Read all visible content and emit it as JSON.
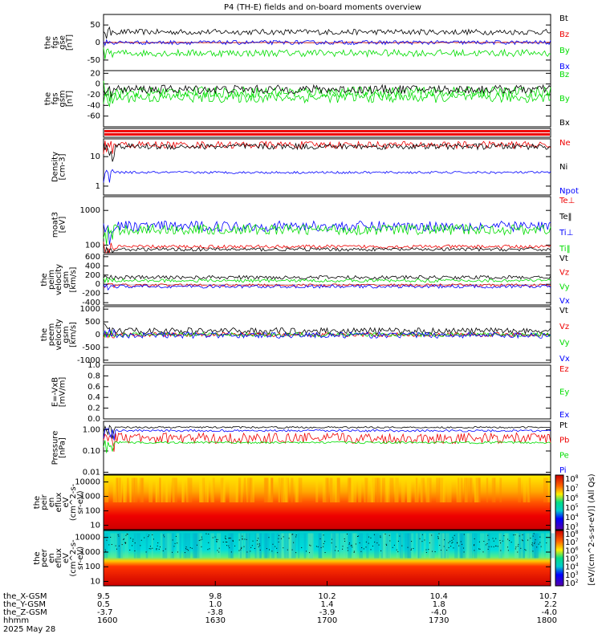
{
  "chart_data": {
    "type": "line",
    "title": "P4 (TH-E) fields and on-board moments overview",
    "date_label": "2025 May 28",
    "time_range": [
      "16:00",
      "18:00"
    ],
    "time_ticks": [
      {
        "t": "1600",
        "x_gsm": "9.5",
        "y_gsm": "0.5",
        "z_gsm": "-3.7"
      },
      {
        "t": "1630",
        "x_gsm": "9.8",
        "y_gsm": "1.0",
        "z_gsm": "-3.8"
      },
      {
        "t": "1700",
        "x_gsm": "10.2",
        "y_gsm": "1.4",
        "z_gsm": "-3.9"
      },
      {
        "t": "1730",
        "x_gsm": "10.4",
        "y_gsm": "1.8",
        "z_gsm": "-4.0"
      },
      {
        "t": "1800",
        "x_gsm": "10.7",
        "y_gsm": "2.2",
        "z_gsm": "-4.0"
      }
    ],
    "time_axis_labels": [
      "the_X-GSM",
      "the_Y-GSM",
      "the_Z-GSM",
      "hhmm"
    ],
    "colorbar_label": "[eV/(cm^2-s-sr-eV)] (All Qs)",
    "colors": {
      "black": "#000000",
      "red": "#ee0000",
      "green": "#00dd00",
      "blue": "#0000ff"
    },
    "panels": [
      {
        "id": "fgs-gse",
        "ylabel": [
          "the",
          "fgs",
          "gse",
          "[nT]"
        ],
        "yticks": [
          "50",
          "0",
          "-50"
        ],
        "ytick_vals": [
          50,
          0,
          -50
        ],
        "ylim": [
          -80,
          80
        ],
        "scale": "linear",
        "series": [
          {
            "name": "Bt",
            "color": "black",
            "level": 30,
            "noise": 8
          },
          {
            "name": "Bz",
            "color": "red",
            "level": 0,
            "noise": 1
          },
          {
            "name": "By",
            "color": "green",
            "level": -30,
            "noise": 10
          },
          {
            "name": "Bx",
            "color": "blue",
            "level": 0,
            "noise": 6
          }
        ]
      },
      {
        "id": "fgs-gsm",
        "ylabel": [
          "the",
          "fgs",
          "gsm",
          "[nT]"
        ],
        "yticks": [
          "20",
          "0",
          "-20",
          "-40",
          "-60"
        ],
        "ytick_vals": [
          20,
          0,
          -20,
          -40,
          -60
        ],
        "ylim": [
          -80,
          25
        ],
        "scale": "linear",
        "series": [
          {
            "name": "Bz",
            "color": "green",
            "level": -15,
            "noise": 10
          },
          {
            "name": "By",
            "color": "green",
            "level": -25,
            "noise": 10
          },
          {
            "name": "Bx",
            "color": "black",
            "level": -10,
            "noise": 8
          }
        ]
      },
      {
        "id": "quality-bar",
        "kind": "bar"
      },
      {
        "id": "density",
        "ylabel": [
          "Density",
          "[cm-3]"
        ],
        "yticks": [
          "10",
          "1"
        ],
        "ytick_vals": [
          10,
          1
        ],
        "ylim": [
          0.5,
          40
        ],
        "scale": "log",
        "series": [
          {
            "name": "Ne",
            "color": "red",
            "level": 25,
            "noise": 0.12
          },
          {
            "name": "Ni",
            "color": "black",
            "level": 22,
            "noise": 0.1
          },
          {
            "name": "Npot",
            "color": "blue",
            "level": 2.9,
            "noise": 0.04
          }
        ]
      },
      {
        "id": "temperature",
        "ylabel": [
          "moat3",
          "[eV]"
        ],
        "yticks": [
          "1000",
          "100"
        ],
        "ytick_vals": [
          1000,
          100
        ],
        "ylim": [
          60,
          2500
        ],
        "scale": "log",
        "series": [
          {
            "name": "Te⊥",
            "color": "red",
            "level": 90,
            "noise": 0.05
          },
          {
            "name": "Te‖",
            "color": "black",
            "level": 75,
            "noise": 0.05
          },
          {
            "name": "Ti⊥",
            "color": "blue",
            "level": 350,
            "noise": 0.15
          },
          {
            "name": "Ti‖",
            "color": "green",
            "level": 280,
            "noise": 0.15
          }
        ]
      },
      {
        "id": "peim-velocity",
        "ylabel": [
          "the",
          "peim",
          "velocity",
          "gsm",
          "[km/s]"
        ],
        "yticks": [
          "600",
          "400",
          "200",
          "0",
          "-200",
          "-400"
        ],
        "ytick_vals": [
          600,
          400,
          200,
          0,
          -200,
          -400
        ],
        "ylim": [
          -450,
          650
        ],
        "scale": "linear",
        "series": [
          {
            "name": "Vt",
            "color": "black",
            "level": 150,
            "noise": 40
          },
          {
            "name": "Vz",
            "color": "red",
            "level": -20,
            "noise": 30
          },
          {
            "name": "Vy",
            "color": "green",
            "level": 80,
            "noise": 35
          },
          {
            "name": "Vx",
            "color": "blue",
            "level": -50,
            "noise": 35
          }
        ]
      },
      {
        "id": "peem-velocity",
        "ylabel": [
          "the",
          "peem",
          "velocity",
          "gsm",
          "[km/s]"
        ],
        "yticks": [
          "1000",
          "500",
          "0",
          "-500",
          "-1000"
        ],
        "ytick_vals": [
          1000,
          500,
          0,
          -500,
          -1000
        ],
        "ylim": [
          -1100,
          1100
        ],
        "scale": "linear",
        "series": [
          {
            "name": "Vt",
            "color": "black",
            "level": 150,
            "noise": 120
          },
          {
            "name": "Vz",
            "color": "red",
            "level": 0,
            "noise": 80
          },
          {
            "name": "Vy",
            "color": "green",
            "level": 0,
            "noise": 80
          },
          {
            "name": "Vx",
            "color": "blue",
            "level": -20,
            "noise": 120
          }
        ]
      },
      {
        "id": "efield",
        "ylabel": [
          "E=-VxB",
          "[mV/m]"
        ],
        "yticks": [
          "1.0",
          "0.8",
          "0.6",
          "0.4",
          "0.2",
          "0.0"
        ],
        "ytick_vals": [
          1,
          0.8,
          0.6,
          0.4,
          0.2,
          0
        ],
        "ylim": [
          0,
          1
        ],
        "scale": "linear",
        "series": [
          {
            "name": "Ez",
            "color": "red",
            "level": null
          },
          {
            "name": "Ey",
            "color": "green",
            "level": null
          },
          {
            "name": "Ex",
            "color": "blue",
            "level": null
          }
        ]
      },
      {
        "id": "pressure",
        "ylabel": [
          "Pressure",
          "[nPa]"
        ],
        "yticks": [
          "1.00",
          "0.10",
          "0.01"
        ],
        "ytick_vals": [
          1,
          0.1,
          0.01
        ],
        "ylim": [
          0.008,
          2.5
        ],
        "scale": "log",
        "series": [
          {
            "name": "Pt",
            "color": "black",
            "level": 1.3,
            "noise": 0.04
          },
          {
            "name": "Pb",
            "color": "red",
            "level": 0.4,
            "noise": 0.25
          },
          {
            "name": "Pe",
            "color": "green",
            "level": 0.25,
            "noise": 0.05
          },
          {
            "name": "Pi",
            "color": "blue",
            "level": 0.9,
            "noise": 0.05
          }
        ]
      },
      {
        "id": "peir-spec",
        "kind": "spectrogram",
        "ylabel": [
          "the",
          "peir",
          "en",
          "eflux",
          "eV",
          "(cm^2-s-",
          "sr-eV)"
        ],
        "yticks": [
          "10000",
          "1000",
          "100",
          "10"
        ],
        "ytick_vals": [
          10000,
          1000,
          100,
          10
        ],
        "ylim": [
          5,
          30000
        ],
        "scale": "log",
        "cb_ticks": [
          "10^8",
          "10^7",
          "10^6",
          "10^5",
          "10^4",
          "10^3"
        ]
      },
      {
        "id": "peer-spec",
        "kind": "spectrogram",
        "ylabel": [
          "the",
          "peer",
          "en",
          "eflux",
          "eV",
          "(cm^2-s-",
          "sr-eV)"
        ],
        "yticks": [
          "10000",
          "1000",
          "100",
          "10"
        ],
        "ytick_vals": [
          10000,
          1000,
          100,
          10
        ],
        "ylim": [
          5,
          30000
        ],
        "scale": "log",
        "cb_ticks": [
          "10^8",
          "10^7",
          "10^6",
          "10^5",
          "10^4",
          "10^3",
          "10^2"
        ]
      }
    ]
  }
}
